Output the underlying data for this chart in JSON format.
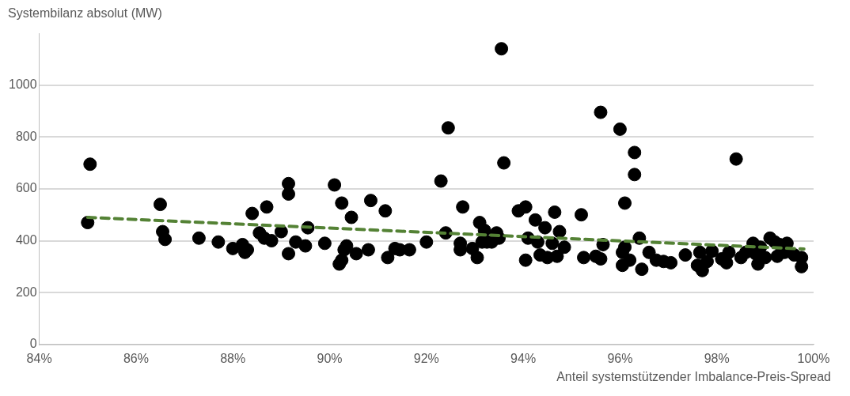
{
  "chart_data": {
    "type": "scatter",
    "ylabel": "Systembilanz absolut (MW)",
    "xlabel": "Anteil systemstützender Imbalance-Preis-Spread",
    "xlim": [
      84,
      100
    ],
    "xticks": [
      {
        "value": 84,
        "label": "84%"
      },
      {
        "value": 86,
        "label": "86%"
      },
      {
        "value": 88,
        "label": "88%"
      },
      {
        "value": 90,
        "label": "90%"
      },
      {
        "value": 92,
        "label": "92%"
      },
      {
        "value": 94,
        "label": "94%"
      },
      {
        "value": 96,
        "label": "96%"
      },
      {
        "value": 98,
        "label": "98%"
      },
      {
        "value": 100,
        "label": "100%"
      }
    ],
    "ylim": [
      0,
      1200
    ],
    "yticks": [
      0,
      200,
      400,
      600,
      800,
      1000
    ],
    "grid": "y",
    "legend": false,
    "marker": "circle",
    "series": [
      {
        "color": "#000000",
        "x": [
          85.0,
          85.05,
          86.5,
          86.55,
          86.6,
          87.3,
          87.7,
          88.0,
          88.2,
          88.25,
          88.3,
          88.4,
          88.55,
          88.65,
          88.7,
          88.8,
          89.0,
          89.15,
          89.15,
          89.15,
          89.3,
          89.5,
          89.55,
          89.9,
          90.1,
          90.25,
          90.2,
          90.25,
          90.3,
          90.35,
          90.45,
          90.55,
          90.8,
          90.85,
          91.15,
          91.2,
          91.35,
          91.45,
          91.65,
          92.0,
          92.3,
          92.4,
          92.45,
          92.7,
          92.7,
          92.75,
          92.95,
          93.05,
          93.1,
          93.15,
          93.2,
          93.25,
          93.35,
          93.45,
          93.5,
          93.55,
          93.6,
          93.9,
          94.05,
          94.05,
          94.1,
          94.25,
          94.3,
          94.35,
          94.45,
          94.5,
          94.6,
          94.65,
          94.7,
          94.75,
          94.85,
          95.2,
          95.25,
          95.5,
          95.6,
          95.6,
          95.65,
          96.0,
          96.1,
          96.05,
          96.05,
          96.1,
          96.2,
          96.3,
          96.3,
          96.4,
          96.45,
          96.6,
          96.75,
          96.9,
          97.05,
          97.35,
          97.6,
          97.65,
          97.7,
          97.8,
          97.9,
          98.1,
          98.2,
          98.25,
          98.4,
          98.5,
          98.6,
          98.75,
          98.8,
          98.85,
          98.9,
          99.0,
          99.1,
          99.2,
          99.25,
          99.3,
          99.4,
          99.45,
          99.6,
          99.75,
          99.75
        ],
        "values": [
          470,
          695,
          540,
          435,
          405,
          410,
          395,
          370,
          385,
          355,
          365,
          505,
          430,
          410,
          530,
          400,
          435,
          620,
          580,
          350,
          395,
          380,
          450,
          390,
          615,
          545,
          310,
          325,
          365,
          380,
          490,
          350,
          365,
          555,
          515,
          335,
          370,
          365,
          365,
          395,
          630,
          430,
          835,
          365,
          390,
          530,
          370,
          335,
          470,
          395,
          440,
          395,
          395,
          430,
          410,
          1140,
          700,
          515,
          530,
          325,
          410,
          480,
          395,
          345,
          450,
          335,
          390,
          510,
          340,
          435,
          375,
          500,
          335,
          340,
          895,
          330,
          385,
          830,
          545,
          355,
          305,
          375,
          325,
          740,
          655,
          410,
          290,
          355,
          325,
          320,
          315,
          345,
          305,
          355,
          285,
          320,
          360,
          330,
          315,
          355,
          715,
          335,
          355,
          390,
          350,
          310,
          375,
          335,
          410,
          395,
          340,
          385,
          355,
          390,
          345,
          335,
          300
        ]
      },
      {
        "type": "line",
        "color": "#548235",
        "line_style": "dashed",
        "marker": "none",
        "x": [
          85.0,
          99.8
        ],
        "values": [
          490,
          368
        ]
      }
    ]
  }
}
